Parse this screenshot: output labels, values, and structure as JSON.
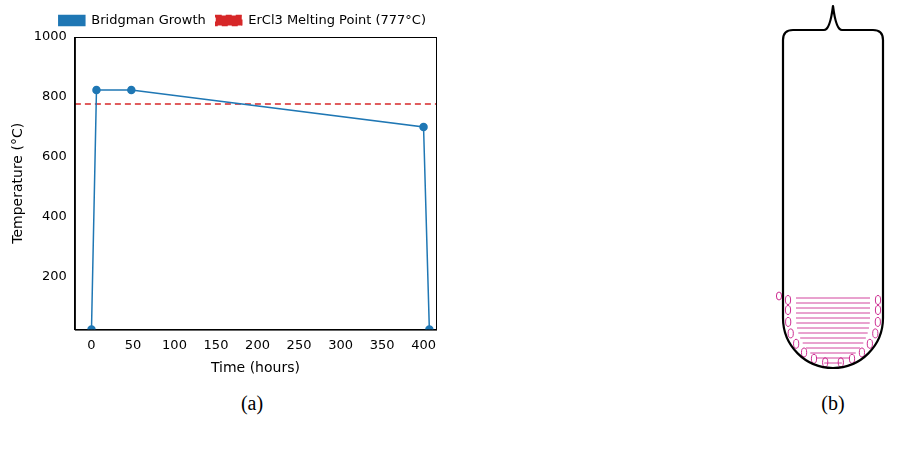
{
  "chart_data": {
    "type": "line",
    "series": [
      {
        "name": "Bridgman Growth",
        "color": "#1f77b4",
        "marker": "circle",
        "line_style": "solid",
        "x": [
          0,
          6,
          48,
          400,
          407
        ],
        "values": [
          25,
          823,
          823,
          700,
          25
        ]
      }
    ],
    "hlines": [
      {
        "name": "ErCl3 Melting Point (777°C)",
        "y": 777,
        "color": "#d62728",
        "line_style": "dashed"
      }
    ],
    "x_label": "Time (hours)",
    "y_label": "Temperature (°C)",
    "xlim": [
      -20,
      415
    ],
    "xticks": [
      0,
      50,
      100,
      150,
      200,
      250,
      300,
      350,
      400
    ],
    "ylim": [
      25,
      1000
    ],
    "yticks": [
      200,
      400,
      600,
      800,
      1000
    ],
    "grid": false,
    "legend": "top",
    "caption": "(a)"
  },
  "diagram": {
    "caption": "(b)"
  }
}
